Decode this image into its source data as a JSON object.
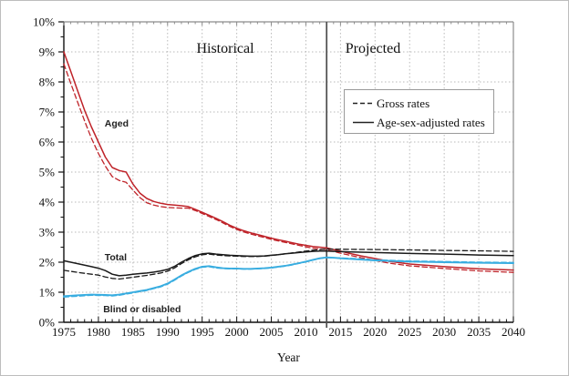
{
  "chart_data": {
    "type": "line",
    "title": "",
    "xlabel": "Year",
    "ylabel": "",
    "xlim": [
      1975,
      2040
    ],
    "ylim": [
      0,
      10
    ],
    "x_ticks": [
      1975,
      1980,
      1985,
      1990,
      1995,
      2000,
      2005,
      2010,
      2015,
      2020,
      2025,
      2030,
      2035,
      2040
    ],
    "y_ticks": [
      "0%",
      "1%",
      "2%",
      "3%",
      "4%",
      "5%",
      "6%",
      "7%",
      "8%",
      "9%",
      "10%"
    ],
    "grid": "dotted, horizontal at each 1%, vertical at each 5 years",
    "divider_year": 2013,
    "annotations": {
      "historical": "Historical",
      "projected": "Projected"
    },
    "legend": {
      "position": "inside upper middle-right",
      "items": [
        {
          "label": "Gross rates",
          "style": "dashed"
        },
        {
          "label": "Age-sex-adjusted rates",
          "style": "solid"
        }
      ]
    },
    "colors": {
      "aged": "#bf2329",
      "total": "#1a1a1a",
      "blind_or_disabled": "#39ade0",
      "grid": "#bababa",
      "frame": "#8c8c8c",
      "divider": "#4d4d4d",
      "legend_border": "#9a9a9a"
    },
    "series_labels": [
      {
        "text": "Aged",
        "year": 1980.9,
        "pct": 6.52
      },
      {
        "text": "Total",
        "year": 1980.9,
        "pct": 2.06
      },
      {
        "text": "Blind or disabled",
        "year": 1980.7,
        "pct": 0.33
      }
    ],
    "series": [
      {
        "name": "Aged — gross rates",
        "group": "aged",
        "style": "dashed",
        "x": [
          1975,
          1976,
          1977,
          1978,
          1979,
          1980,
          1981,
          1982,
          1983,
          1984,
          1985,
          1986,
          1987,
          1988,
          1989,
          1990,
          1991,
          1992,
          1993,
          1994,
          1995,
          1996,
          1997,
          1998,
          1999,
          2000,
          2001,
          2002,
          2003,
          2004,
          2005,
          2006,
          2007,
          2008,
          2009,
          2010,
          2011,
          2012,
          2013,
          2014,
          2015,
          2016,
          2018,
          2020,
          2022,
          2025,
          2030,
          2035,
          2040
        ],
        "y": [
          8.6,
          7.95,
          7.32,
          6.7,
          6.12,
          5.62,
          5.2,
          4.85,
          4.72,
          4.66,
          4.4,
          4.15,
          3.98,
          3.9,
          3.85,
          3.82,
          3.81,
          3.8,
          3.8,
          3.72,
          3.62,
          3.52,
          3.42,
          3.31,
          3.19,
          3.09,
          3.01,
          2.94,
          2.88,
          2.82,
          2.76,
          2.71,
          2.66,
          2.61,
          2.56,
          2.51,
          2.47,
          2.44,
          2.42,
          2.36,
          2.3,
          2.25,
          2.15,
          2.06,
          1.97,
          1.88,
          1.79,
          1.71,
          1.66
        ]
      },
      {
        "name": "Aged — age-sex-adjusted rates",
        "group": "aged",
        "style": "solid",
        "x": [
          1975,
          1976,
          1977,
          1978,
          1979,
          1980,
          1981,
          1982,
          1983,
          1984,
          1985,
          1986,
          1987,
          1988,
          1989,
          1990,
          1991,
          1992,
          1993,
          1994,
          1995,
          1996,
          1997,
          1998,
          1999,
          2000,
          2001,
          2002,
          2003,
          2004,
          2005,
          2006,
          2007,
          2008,
          2009,
          2010,
          2011,
          2012,
          2013,
          2014,
          2015,
          2016,
          2018,
          2020,
          2022,
          2025,
          2030,
          2035,
          2040
        ],
        "y": [
          9.0,
          8.35,
          7.7,
          7.05,
          6.5,
          6.0,
          5.5,
          5.15,
          5.05,
          5.0,
          4.6,
          4.3,
          4.12,
          4.02,
          3.96,
          3.92,
          3.9,
          3.88,
          3.85,
          3.76,
          3.66,
          3.56,
          3.46,
          3.35,
          3.23,
          3.13,
          3.05,
          2.98,
          2.92,
          2.86,
          2.8,
          2.75,
          2.7,
          2.65,
          2.6,
          2.56,
          2.52,
          2.5,
          2.48,
          2.42,
          2.37,
          2.31,
          2.21,
          2.12,
          2.03,
          1.94,
          1.85,
          1.78,
          1.74
        ]
      },
      {
        "name": "Total — gross rates",
        "group": "total",
        "style": "dashed",
        "x": [
          1975,
          1977,
          1979,
          1980,
          1981,
          1982,
          1983,
          1984,
          1985,
          1986,
          1987,
          1988,
          1989,
          1990,
          1991,
          1992,
          1993,
          1994,
          1995,
          1996,
          1997,
          1998,
          1999,
          2000,
          2001,
          2002,
          2003,
          2004,
          2005,
          2006,
          2007,
          2008,
          2009,
          2010,
          2011,
          2012,
          2013,
          2015,
          2020,
          2025,
          2030,
          2035,
          2040
        ],
        "y": [
          1.73,
          1.66,
          1.6,
          1.57,
          1.51,
          1.46,
          1.44,
          1.47,
          1.5,
          1.53,
          1.56,
          1.6,
          1.64,
          1.7,
          1.81,
          1.95,
          2.08,
          2.18,
          2.25,
          2.27,
          2.24,
          2.22,
          2.21,
          2.2,
          2.19,
          2.19,
          2.19,
          2.2,
          2.22,
          2.25,
          2.28,
          2.31,
          2.34,
          2.37,
          2.4,
          2.42,
          2.44,
          2.43,
          2.42,
          2.41,
          2.39,
          2.38,
          2.36
        ]
      },
      {
        "name": "Total — age-sex-adjusted rates",
        "group": "total",
        "style": "solid",
        "x": [
          1975,
          1977,
          1979,
          1980,
          1981,
          1982,
          1983,
          1984,
          1985,
          1986,
          1987,
          1988,
          1989,
          1990,
          1991,
          1992,
          1993,
          1994,
          1995,
          1996,
          1997,
          1998,
          1999,
          2000,
          2001,
          2002,
          2003,
          2004,
          2005,
          2006,
          2007,
          2008,
          2009,
          2010,
          2011,
          2012,
          2013,
          2015,
          2020,
          2025,
          2030,
          2035,
          2040
        ],
        "y": [
          2.05,
          1.95,
          1.85,
          1.8,
          1.72,
          1.6,
          1.55,
          1.57,
          1.6,
          1.62,
          1.64,
          1.67,
          1.71,
          1.76,
          1.86,
          2.0,
          2.12,
          2.22,
          2.28,
          2.3,
          2.27,
          2.25,
          2.23,
          2.22,
          2.21,
          2.2,
          2.2,
          2.21,
          2.23,
          2.25,
          2.28,
          2.3,
          2.32,
          2.34,
          2.36,
          2.37,
          2.37,
          2.35,
          2.32,
          2.29,
          2.27,
          2.24,
          2.22
        ]
      },
      {
        "name": "Blind or disabled — gross rates",
        "group": "blind_or_disabled",
        "style": "dashed",
        "x": [
          1975,
          1977,
          1979,
          1981,
          1982,
          1983,
          1984,
          1985,
          1986,
          1987,
          1988,
          1989,
          1990,
          1991,
          1992,
          1993,
          1994,
          1995,
          1996,
          1997,
          1998,
          1999,
          2000,
          2001,
          2002,
          2003,
          2004,
          2005,
          2006,
          2007,
          2008,
          2009,
          2010,
          2011,
          2012,
          2013,
          2014,
          2015,
          2017,
          2020,
          2025,
          2030,
          2035,
          2040
        ],
        "y": [
          0.84,
          0.87,
          0.9,
          0.89,
          0.88,
          0.9,
          0.94,
          0.98,
          1.02,
          1.06,
          1.12,
          1.18,
          1.27,
          1.4,
          1.54,
          1.66,
          1.76,
          1.83,
          1.85,
          1.81,
          1.79,
          1.78,
          1.78,
          1.77,
          1.77,
          1.78,
          1.79,
          1.81,
          1.84,
          1.87,
          1.91,
          1.96,
          2.01,
          2.07,
          2.12,
          2.15,
          2.15,
          2.14,
          2.12,
          2.08,
          2.04,
          2.02,
          2.0,
          1.99
        ]
      },
      {
        "name": "Blind or disabled — age-sex-adjusted rates",
        "group": "blind_or_disabled",
        "style": "solid",
        "x": [
          1975,
          1977,
          1979,
          1981,
          1982,
          1983,
          1984,
          1985,
          1986,
          1987,
          1988,
          1989,
          1990,
          1991,
          1992,
          1993,
          1994,
          1995,
          1996,
          1997,
          1998,
          1999,
          2000,
          2001,
          2002,
          2003,
          2004,
          2005,
          2006,
          2007,
          2008,
          2009,
          2010,
          2011,
          2012,
          2013,
          2014,
          2015,
          2017,
          2020,
          2025,
          2030,
          2035,
          2040
        ],
        "y": [
          0.87,
          0.9,
          0.92,
          0.91,
          0.9,
          0.92,
          0.96,
          1.0,
          1.04,
          1.08,
          1.14,
          1.2,
          1.29,
          1.42,
          1.56,
          1.68,
          1.78,
          1.85,
          1.87,
          1.83,
          1.8,
          1.79,
          1.79,
          1.78,
          1.78,
          1.79,
          1.8,
          1.82,
          1.85,
          1.88,
          1.92,
          1.97,
          2.02,
          2.08,
          2.13,
          2.16,
          2.15,
          2.13,
          2.1,
          2.06,
          2.02,
          2.0,
          1.98,
          1.97
        ]
      }
    ]
  }
}
